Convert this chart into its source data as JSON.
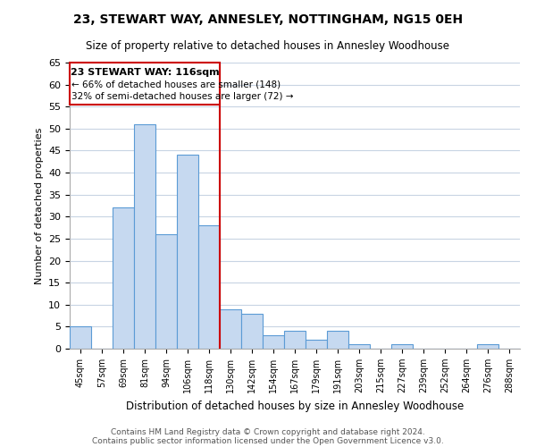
{
  "title1": "23, STEWART WAY, ANNESLEY, NOTTINGHAM, NG15 0EH",
  "title2": "Size of property relative to detached houses in Annesley Woodhouse",
  "xlabel": "Distribution of detached houses by size in Annesley Woodhouse",
  "ylabel": "Number of detached properties",
  "bin_labels": [
    "45sqm",
    "57sqm",
    "69sqm",
    "81sqm",
    "94sqm",
    "106sqm",
    "118sqm",
    "130sqm",
    "142sqm",
    "154sqm",
    "167sqm",
    "179sqm",
    "191sqm",
    "203sqm",
    "215sqm",
    "227sqm",
    "239sqm",
    "252sqm",
    "264sqm",
    "276sqm",
    "288sqm"
  ],
  "bar_heights": [
    5,
    0,
    32,
    51,
    26,
    44,
    28,
    9,
    8,
    3,
    4,
    2,
    4,
    1,
    0,
    1,
    0,
    0,
    0,
    1,
    0
  ],
  "bar_color": "#c6d9f0",
  "bar_edge_color": "#5b9bd5",
  "property_line_x": 6,
  "property_line_label": "23 STEWART WAY: 116sqm",
  "annotation_line1": "← 66% of detached houses are smaller (148)",
  "annotation_line2": "32% of semi-detached houses are larger (72) →",
  "annotation_box_color": "#ffffff",
  "annotation_box_edge": "#cc0000",
  "vline_color": "#cc0000",
  "ylim": [
    0,
    65
  ],
  "yticks": [
    0,
    5,
    10,
    15,
    20,
    25,
    30,
    35,
    40,
    45,
    50,
    55,
    60,
    65
  ],
  "footer1": "Contains HM Land Registry data © Crown copyright and database right 2024.",
  "footer2": "Contains public sector information licensed under the Open Government Licence v3.0.",
  "bg_color": "#ffffff",
  "grid_color": "#c8d4e3"
}
